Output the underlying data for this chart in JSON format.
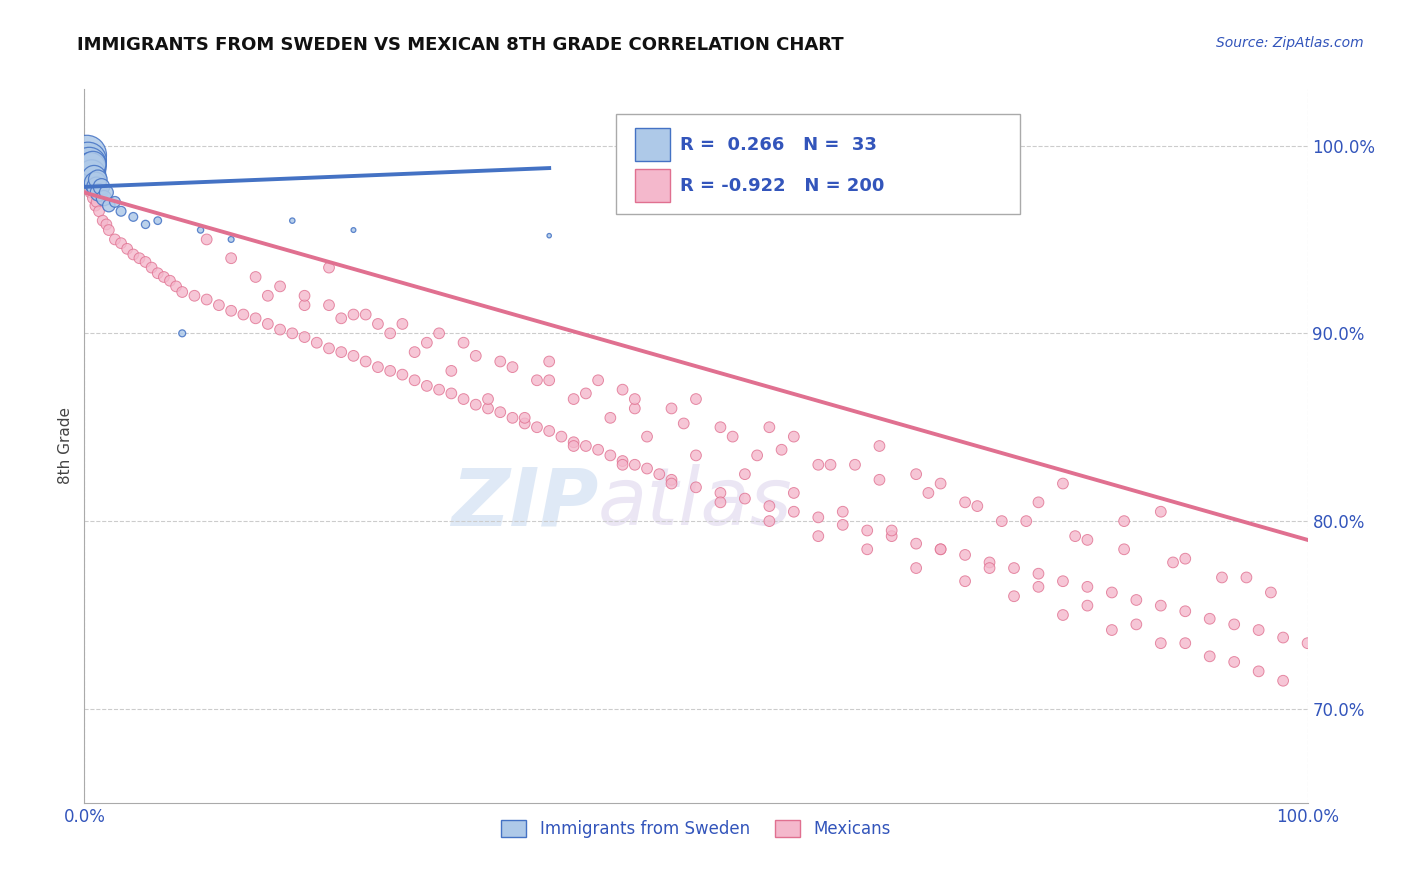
{
  "title": "IMMIGRANTS FROM SWEDEN VS MEXICAN 8TH GRADE CORRELATION CHART",
  "source_text": "Source: ZipAtlas.com",
  "ylabel": "8th Grade",
  "watermark_zip": "ZIP",
  "watermark_atlas": "atlas",
  "xmin": 0.0,
  "xmax": 100.0,
  "ymin": 65.0,
  "ymax": 103.0,
  "ytick_values": [
    70.0,
    80.0,
    90.0,
    100.0
  ],
  "legend_sweden_r": "0.266",
  "legend_sweden_n": "33",
  "legend_mexican_r": "-0.922",
  "legend_mexican_n": "200",
  "blue_fill": "#aec9e8",
  "blue_edge": "#4472c4",
  "blue_line": "#4472c4",
  "pink_fill": "#f4b8cc",
  "pink_edge": "#e07090",
  "pink_line": "#e07090",
  "blue_scatter_x": [
    0.2,
    0.3,
    0.4,
    0.5,
    0.6,
    0.7,
    0.8,
    0.9,
    1.0,
    1.1,
    1.2,
    1.4,
    1.6,
    1.8,
    2.0,
    2.5,
    3.0,
    4.0,
    5.0,
    6.0,
    8.0,
    9.5,
    12.0,
    17.0,
    22.0,
    38.0
  ],
  "blue_scatter_y": [
    99.5,
    99.2,
    99.0,
    98.8,
    98.5,
    99.0,
    98.3,
    98.0,
    97.8,
    98.2,
    97.5,
    97.8,
    97.2,
    97.5,
    96.8,
    97.0,
    96.5,
    96.2,
    95.8,
    96.0,
    90.0,
    95.5,
    95.0,
    96.0,
    95.5,
    95.2
  ],
  "blue_scatter_sizes_large": [
    800,
    700,
    600,
    500,
    400,
    350,
    300,
    250,
    200,
    180,
    160,
    140,
    120,
    100,
    80,
    60,
    50,
    40,
    35,
    30,
    25,
    20,
    18,
    15,
    12,
    10
  ],
  "pink_scatter_x": [
    0.3,
    0.5,
    0.7,
    0.9,
    1.0,
    1.2,
    1.5,
    1.8,
    2.0,
    2.5,
    3.0,
    3.5,
    4.0,
    4.5,
    5.0,
    5.5,
    6.0,
    6.5,
    7.0,
    7.5,
    8.0,
    9.0,
    10.0,
    11.0,
    12.0,
    13.0,
    14.0,
    15.0,
    16.0,
    17.0,
    18.0,
    19.0,
    20.0,
    21.0,
    22.0,
    23.0,
    24.0,
    25.0,
    26.0,
    27.0,
    28.0,
    29.0,
    30.0,
    31.0,
    32.0,
    33.0,
    34.0,
    35.0,
    36.0,
    37.0,
    38.0,
    39.0,
    40.0,
    41.0,
    42.0,
    43.0,
    44.0,
    45.0,
    46.0,
    47.0,
    48.0,
    50.0,
    52.0,
    54.0,
    56.0,
    58.0,
    60.0,
    62.0,
    64.0,
    66.0,
    68.0,
    70.0,
    72.0,
    74.0,
    76.0,
    78.0,
    80.0,
    82.0,
    84.0,
    86.0,
    88.0,
    90.0,
    92.0,
    94.0,
    96.0,
    98.0,
    100.0,
    20.0,
    22.0,
    24.0,
    27.0,
    30.0,
    33.0,
    36.0,
    40.0,
    44.0,
    48.0,
    52.0,
    56.0,
    60.0,
    64.0,
    68.0,
    72.0,
    76.0,
    80.0,
    84.0,
    88.0,
    92.0,
    96.0,
    15.0,
    18.0,
    21.0,
    25.0,
    28.0,
    32.0,
    35.0,
    38.0,
    41.0,
    45.0,
    49.0,
    53.0,
    57.0,
    61.0,
    65.0,
    69.0,
    73.0,
    77.0,
    81.0,
    85.0,
    89.0,
    93.0,
    97.0,
    10.0,
    12.0,
    14.0,
    16.0,
    18.0,
    20.0,
    23.0,
    26.0,
    29.0,
    31.0,
    34.0,
    37.0,
    40.0,
    43.0,
    46.0,
    50.0,
    54.0,
    58.0,
    62.0,
    66.0,
    70.0,
    74.0,
    78.0,
    82.0,
    86.0,
    90.0,
    94.0,
    98.0,
    63.0,
    72.0,
    52.0,
    45.0,
    80.0,
    88.0,
    55.0,
    68.0,
    75.0,
    82.0,
    90.0,
    95.0,
    78.0,
    85.0,
    60.0,
    70.0,
    65.0,
    48.0,
    58.0,
    42.0,
    38.0,
    50.0,
    56.0,
    44.0
  ],
  "pink_scatter_y": [
    98.0,
    97.5,
    97.2,
    96.8,
    97.0,
    96.5,
    96.0,
    95.8,
    95.5,
    95.0,
    94.8,
    94.5,
    94.2,
    94.0,
    93.8,
    93.5,
    93.2,
    93.0,
    92.8,
    92.5,
    92.2,
    92.0,
    91.8,
    91.5,
    91.2,
    91.0,
    90.8,
    90.5,
    90.2,
    90.0,
    89.8,
    89.5,
    89.2,
    89.0,
    88.8,
    88.5,
    88.2,
    88.0,
    87.8,
    87.5,
    87.2,
    87.0,
    86.8,
    86.5,
    86.2,
    86.0,
    85.8,
    85.5,
    85.2,
    85.0,
    84.8,
    84.5,
    84.2,
    84.0,
    83.8,
    83.5,
    83.2,
    83.0,
    82.8,
    82.5,
    82.2,
    81.8,
    81.5,
    81.2,
    80.8,
    80.5,
    80.2,
    79.8,
    79.5,
    79.2,
    78.8,
    78.5,
    78.2,
    77.8,
    77.5,
    77.2,
    76.8,
    76.5,
    76.2,
    75.8,
    75.5,
    75.2,
    74.8,
    74.5,
    74.2,
    73.8,
    73.5,
    93.5,
    91.0,
    90.5,
    89.0,
    88.0,
    86.5,
    85.5,
    84.0,
    83.0,
    82.0,
    81.0,
    80.0,
    79.2,
    78.5,
    77.5,
    76.8,
    76.0,
    75.0,
    74.2,
    73.5,
    72.8,
    72.0,
    92.0,
    91.5,
    90.8,
    90.0,
    89.5,
    88.8,
    88.2,
    87.5,
    86.8,
    86.0,
    85.2,
    84.5,
    83.8,
    83.0,
    82.2,
    81.5,
    80.8,
    80.0,
    79.2,
    78.5,
    77.8,
    77.0,
    76.2,
    95.0,
    94.0,
    93.0,
    92.5,
    92.0,
    91.5,
    91.0,
    90.5,
    90.0,
    89.5,
    88.5,
    87.5,
    86.5,
    85.5,
    84.5,
    83.5,
    82.5,
    81.5,
    80.5,
    79.5,
    78.5,
    77.5,
    76.5,
    75.5,
    74.5,
    73.5,
    72.5,
    71.5,
    83.0,
    81.0,
    85.0,
    86.5,
    82.0,
    80.5,
    83.5,
    82.5,
    80.0,
    79.0,
    78.0,
    77.0,
    81.0,
    80.0,
    83.0,
    82.0,
    84.0,
    86.0,
    84.5,
    87.5,
    88.5,
    86.5,
    85.0,
    87.0
  ],
  "blue_line_x": [
    0.0,
    38.0
  ],
  "blue_line_y": [
    97.8,
    98.8
  ],
  "pink_line_x": [
    0.0,
    100.0
  ],
  "pink_line_y": [
    97.5,
    79.0
  ]
}
